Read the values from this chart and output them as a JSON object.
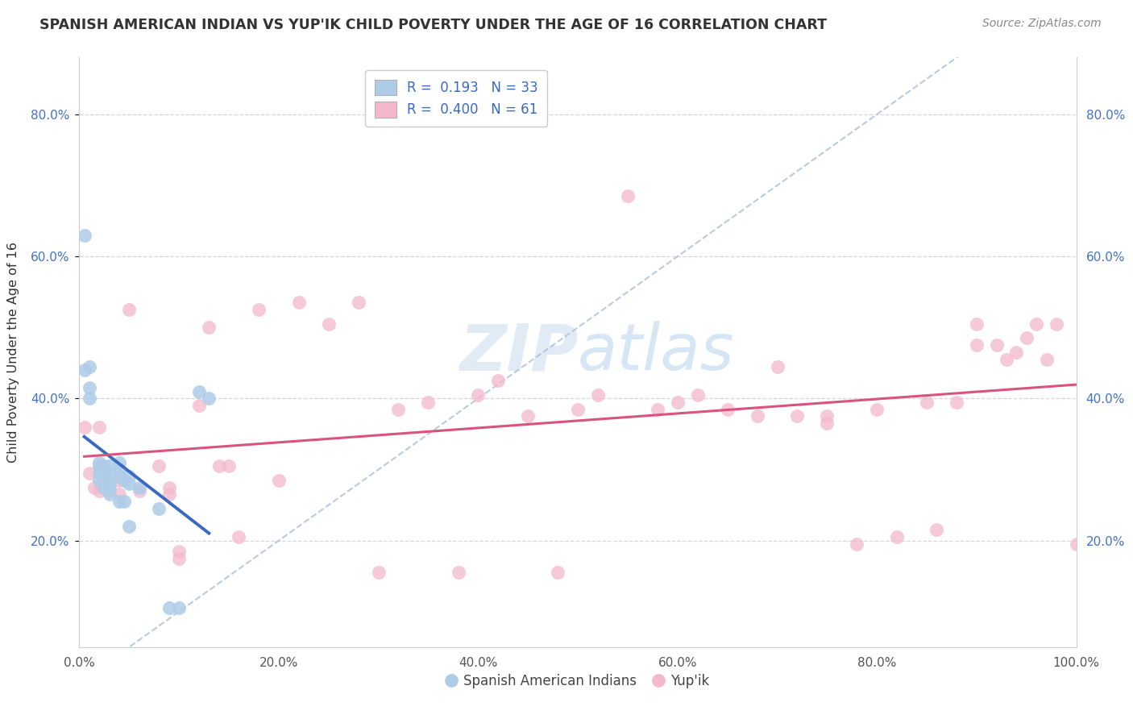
{
  "title": "SPANISH AMERICAN INDIAN VS YUP'IK CHILD POVERTY UNDER THE AGE OF 16 CORRELATION CHART",
  "source": "Source: ZipAtlas.com",
  "ylabel": "Child Poverty Under the Age of 16",
  "xlim": [
    0.0,
    1.0
  ],
  "ylim": [
    0.05,
    0.88
  ],
  "xtick_labels": [
    "0.0%",
    "20.0%",
    "40.0%",
    "60.0%",
    "80.0%",
    "100.0%"
  ],
  "xtick_vals": [
    0.0,
    0.2,
    0.4,
    0.6,
    0.8,
    1.0
  ],
  "ytick_labels": [
    "20.0%",
    "40.0%",
    "60.0%",
    "80.0%"
  ],
  "ytick_vals": [
    0.2,
    0.4,
    0.6,
    0.8
  ],
  "blue_R": 0.193,
  "blue_N": 33,
  "pink_R": 0.4,
  "pink_N": 61,
  "blue_color": "#aecce8",
  "pink_color": "#f4b8cc",
  "blue_line_color": "#3a6abf",
  "pink_line_color": "#d9547a",
  "diag_line_color": "#b0c0d8",
  "watermark_color": "#ccdff0",
  "blue_scatter_x": [
    0.005,
    0.005,
    0.01,
    0.01,
    0.01,
    0.02,
    0.02,
    0.02,
    0.02,
    0.025,
    0.025,
    0.025,
    0.025,
    0.03,
    0.03,
    0.03,
    0.03,
    0.03,
    0.04,
    0.04,
    0.04,
    0.04,
    0.045,
    0.045,
    0.05,
    0.05,
    0.05,
    0.06,
    0.08,
    0.09,
    0.1,
    0.12,
    0.13
  ],
  "blue_scatter_y": [
    0.63,
    0.44,
    0.445,
    0.415,
    0.4,
    0.31,
    0.305,
    0.295,
    0.285,
    0.305,
    0.295,
    0.285,
    0.275,
    0.305,
    0.295,
    0.285,
    0.275,
    0.265,
    0.31,
    0.3,
    0.29,
    0.255,
    0.285,
    0.255,
    0.29,
    0.28,
    0.22,
    0.275,
    0.245,
    0.105,
    0.105,
    0.41,
    0.4
  ],
  "pink_scatter_x": [
    0.005,
    0.01,
    0.015,
    0.02,
    0.02,
    0.03,
    0.04,
    0.04,
    0.05,
    0.06,
    0.08,
    0.09,
    0.09,
    0.1,
    0.1,
    0.12,
    0.13,
    0.14,
    0.15,
    0.16,
    0.18,
    0.2,
    0.22,
    0.25,
    0.28,
    0.3,
    0.32,
    0.35,
    0.38,
    0.4,
    0.42,
    0.45,
    0.48,
    0.5,
    0.52,
    0.55,
    0.58,
    0.6,
    0.62,
    0.65,
    0.68,
    0.7,
    0.72,
    0.75,
    0.75,
    0.78,
    0.8,
    0.82,
    0.85,
    0.86,
    0.88,
    0.9,
    0.9,
    0.92,
    0.93,
    0.94,
    0.95,
    0.96,
    0.97,
    0.98,
    1.0
  ],
  "pink_scatter_y": [
    0.36,
    0.295,
    0.275,
    0.36,
    0.27,
    0.27,
    0.285,
    0.265,
    0.525,
    0.27,
    0.305,
    0.275,
    0.265,
    0.185,
    0.175,
    0.39,
    0.5,
    0.305,
    0.305,
    0.205,
    0.525,
    0.285,
    0.535,
    0.505,
    0.535,
    0.155,
    0.385,
    0.395,
    0.155,
    0.405,
    0.425,
    0.375,
    0.155,
    0.385,
    0.405,
    0.685,
    0.385,
    0.395,
    0.405,
    0.385,
    0.375,
    0.445,
    0.375,
    0.375,
    0.365,
    0.195,
    0.385,
    0.205,
    0.395,
    0.215,
    0.395,
    0.505,
    0.475,
    0.475,
    0.455,
    0.465,
    0.485,
    0.505,
    0.455,
    0.505,
    0.195
  ]
}
